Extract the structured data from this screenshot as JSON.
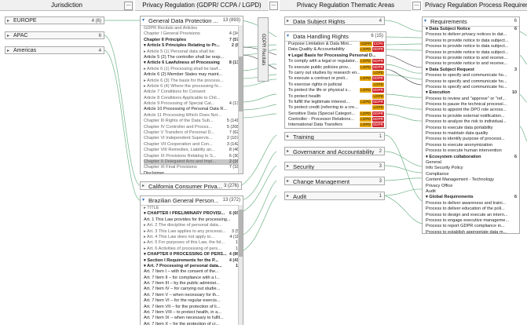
{
  "headers": {
    "jurisdiction": "Jurisdiction",
    "privacy_regulation": "Privacy Regulation (GDPR/ CCPA / LGPD)",
    "thematic_areas": "Privacy Regulation Thematic Areas",
    "requirements": "Privacy Regulation Process Requirements"
  },
  "vertical_label": "GDPR Recitals",
  "jurisdictions": [
    {
      "label": "EUROPE",
      "count": "4 (6)"
    },
    {
      "label": "APAC",
      "count": "6"
    },
    {
      "label": "Americas",
      "count": "4"
    }
  ],
  "gdpr": {
    "title": "General Data Protection ...",
    "count": "13 (893)",
    "rows": [
      {
        "t": "GDPR Recitals and Articles",
        "c": "",
        "cls": "g"
      },
      {
        "t": "Chapter I General Provisions",
        "c": "4 (34)",
        "cls": "g"
      },
      {
        "t": "Chapter II Principles",
        "c": "7 (57)",
        "cls": "b"
      },
      {
        "t": "▾ Article 5 Principles Relating to Pr...",
        "c": "2 (8)",
        "cls": "b"
      },
      {
        "t": "   ▸ Article 5 (1) Personal data shall be:",
        "c": "6",
        "cls": "g"
      },
      {
        "t": "   Article 5 (2) The controller shall be resp...",
        "c": "",
        "cls": ""
      },
      {
        "t": "▾ Article 6 Lawfulness of Processing",
        "c": "8 (13)",
        "cls": "b"
      },
      {
        "t": "   ▸ Article 6 (1) Processing shall be lawf...",
        "c": "6",
        "cls": "g"
      },
      {
        "t": "   Article 6 (2) Member States may maint...",
        "c": "",
        "cls": ""
      },
      {
        "t": "   ▸ Article 6 (3) The basis for the process...",
        "c": "2",
        "cls": "g"
      },
      {
        "t": "   ▸ Article 6 (4) Where the processing fo...",
        "c": "5",
        "cls": "g"
      },
      {
        "t": "   Article 7 Conditions for Consent",
        "c": "4",
        "cls": "g"
      },
      {
        "t": "   Article 8 Conditions Applicable to Chil...",
        "c": "3",
        "cls": "g"
      },
      {
        "t": "   Article 9 Processing of Special Cat...",
        "c": "4 (13)",
        "cls": "g"
      },
      {
        "t": "Article 10 Processing of Personal Data R...",
        "c": "",
        "cls": ""
      },
      {
        "t": "Article 11 Processing Which Does Not...",
        "c": "2",
        "cls": "g"
      },
      {
        "t": "Chapter III Rights of the Data Sub...",
        "c": "5 (141)",
        "cls": "g"
      },
      {
        "t": "Chapter IV Controller and Proces...",
        "c": "5 (208)",
        "cls": "g"
      },
      {
        "t": "Chapter V Transfers of Personal D...",
        "c": "7 (62)",
        "cls": "g"
      },
      {
        "t": "Chapter VI Independent Supervis...",
        "c": "2 (107)",
        "cls": "g"
      },
      {
        "t": "Chapter VII Cooperation and Con...",
        "c": "3 (142)",
        "cls": "g"
      },
      {
        "t": "Chapter VIII Remedies, Liability an...",
        "c": "8 (46)",
        "cls": "g"
      },
      {
        "t": "Chapter IX Provisions Relating to S...",
        "c": "6 (30)",
        "cls": "g"
      },
      {
        "t": "Chapter X Delegated Acts and Impl...",
        "c": "2 (16)",
        "cls": "g sel"
      },
      {
        "t": "Chapter XI Final Provisions",
        "c": "7 (18)",
        "cls": "g"
      },
      {
        "t": "Disclaimer",
        "c": "",
        "cls": ""
      }
    ]
  },
  "ccpa": {
    "title": "California Consumer Priva...",
    "count": "3 (276)"
  },
  "lgpd": {
    "title": "Brazilian General Person...",
    "count": "13 (372)",
    "rows": [
      {
        "t": "▸ TITLE",
        "c": "2",
        "cls": "g"
      },
      {
        "t": "▾ CHAPTER I PRELIMINARY PROVISI...",
        "c": "6 (65)",
        "cls": "b"
      },
      {
        "t": "Art. 1 This Law provides for the processing...",
        "c": "",
        "cls": ""
      },
      {
        "t": "▸ Art. 2 The discipline of personal data...",
        "c": "7",
        "cls": "g"
      },
      {
        "t": "▸ Art. 3 This Law applies to any processi...",
        "c": "3 (5)",
        "cls": "g"
      },
      {
        "t": "▸ Art. 4 This Law does not apply to...",
        "c": "4 (11)",
        "cls": "g"
      },
      {
        "t": "▸ Art. 5 For purposes of this Law, the fol...",
        "c": "19",
        "cls": "g"
      },
      {
        "t": "▸ Art. 6 Activities of processing of pers...",
        "c": "10",
        "cls": "g"
      },
      {
        "t": "▾ CHAPTER II PROCESSING OF PERS...",
        "c": "4 (86)",
        "cls": "b"
      },
      {
        "t": "▾ Section I Requirements for the P...",
        "c": "4 (41)",
        "cls": "b"
      },
      {
        "t": "▾ Art. 7 Processing of personal data...",
        "c": "16",
        "cls": "b"
      },
      {
        "t": "   Art. 7 Item I – with the consent of the...",
        "c": "",
        "cls": ""
      },
      {
        "t": "   Art. 7 Item II – for compliance with a l...",
        "c": "",
        "cls": ""
      },
      {
        "t": "   Art. 7 Item III – by the public administ...",
        "c": "",
        "cls": ""
      },
      {
        "t": "   Art. 7 Item IV – for carrying out studie...",
        "c": "",
        "cls": ""
      },
      {
        "t": "   Art. 7 Item V – when necessary for th...",
        "c": "",
        "cls": ""
      },
      {
        "t": "   Art. 7 Item VI – for the regular exercis...",
        "c": "",
        "cls": ""
      },
      {
        "t": "   Art. 7 Item VII – for the protection of li...",
        "c": "",
        "cls": ""
      },
      {
        "t": "   Art. 7 Item VIII – to protect health, in a...",
        "c": "",
        "cls": ""
      },
      {
        "t": "   Art. 7 Item IX – when necessary to fulfil...",
        "c": "",
        "cls": ""
      },
      {
        "t": "   Art. 7 Item X – for the protection of cr...",
        "c": "",
        "cls": ""
      }
    ]
  },
  "subject_rights": {
    "title": "Data Subject Rights",
    "count": "4"
  },
  "handling": {
    "title": "Data Handling Rights",
    "count": "6 (15)",
    "rows": [
      {
        "t": "Purpose Limitation & Data Mini...",
        "tags": [
          [
            "GDPR",
            "y"
          ],
          [
            "CCPA",
            "r"
          ]
        ],
        "bold": false
      },
      {
        "t": "Data Quality & Accountability",
        "tags": [
          [
            "LGPD",
            "y"
          ],
          [
            "GDPR",
            "r"
          ]
        ],
        "bold": false
      },
      {
        "t": "▾ Legal Basis for Processing Personal D...",
        "tags": [],
        "bold": true
      },
      {
        "t": "To comply with a legal or regulator...",
        "tags": [
          [
            "LGPD",
            "y"
          ],
          [
            "GDPR",
            "r"
          ]
        ],
        "bold": false
      },
      {
        "t": "To execute public policies prov...",
        "tags": [
          [
            "LGPD",
            "y"
          ],
          [
            "GDPR",
            "r"
          ]
        ],
        "bold": false
      },
      {
        "t": "To carry out studies by research en...",
        "tags": [
          [
            "LGPD",
            "y"
          ]
        ],
        "bold": false
      },
      {
        "t": "To execute a contract or preli...",
        "tags": [
          [
            "LGPD",
            "y"
          ],
          [
            "GDPR",
            "r"
          ]
        ],
        "bold": false
      },
      {
        "t": "To exercise rights in judicial",
        "tags": [
          [
            "LGPD",
            "y"
          ]
        ],
        "bold": false
      },
      {
        "t": "To protect the life or physical s...",
        "tags": [
          [
            "LGPD",
            "y"
          ],
          [
            "GDPR",
            "r"
          ]
        ],
        "bold": false
      },
      {
        "t": "To protect health",
        "tags": [
          [
            "LGPD",
            "y"
          ]
        ],
        "bold": false
      },
      {
        "t": "To fulfill the legitimate interest...",
        "tags": [
          [
            "LGPD",
            "y"
          ],
          [
            "GDPR",
            "r"
          ]
        ],
        "bold": false
      },
      {
        "t": "To protect credit (referring to a cre...",
        "tags": [
          [
            "LGPD",
            "y"
          ]
        ],
        "bold": false
      },
      {
        "t": "Sensitive Data (Special Categori...",
        "tags": [
          [
            "LGPD",
            "y"
          ],
          [
            "GDPR",
            "r"
          ]
        ],
        "bold": false
      },
      {
        "t": "Controller - Processor Relations...",
        "tags": [
          [
            "LGPD",
            "y"
          ],
          [
            "GDPR",
            "r"
          ]
        ],
        "bold": false
      },
      {
        "t": "International Data Transfers",
        "tags": [
          [
            "LGPD",
            "y"
          ],
          [
            "GDPR",
            "r"
          ]
        ],
        "bold": false
      }
    ]
  },
  "themes": [
    {
      "label": "Training",
      "count": "1"
    },
    {
      "label": "Governance and Accountability",
      "count": "2"
    },
    {
      "label": "Security",
      "count": "3"
    },
    {
      "label": "Change Management",
      "count": "3"
    },
    {
      "label": "Audit",
      "count": "1"
    }
  ],
  "requirements": {
    "title": "Requirements",
    "count": "6",
    "rows": [
      {
        "t": "▾ Data Subject Notice",
        "c": "6",
        "b": true
      },
      {
        "t": "Process to deliver privacy notices to dat...",
        "c": "",
        "b": false
      },
      {
        "t": "Process to provide notice to data subject...",
        "c": "",
        "b": false
      },
      {
        "t": "Process to provide notice to data subject...",
        "c": "",
        "b": false
      },
      {
        "t": "Process to provide notice to data subject...",
        "c": "",
        "b": false
      },
      {
        "t": "Process to provide notice to and receive...",
        "c": "",
        "b": false
      },
      {
        "t": "Process to provide notice to and receive...",
        "c": "",
        "b": false
      },
      {
        "t": "▾ Data Subject Request",
        "c": "3",
        "b": true
      },
      {
        "t": "Process to specify and communicate ho...",
        "c": "",
        "b": false
      },
      {
        "t": "Process to specify and communicate ho...",
        "c": "",
        "b": false
      },
      {
        "t": "Process to specify and communicate ho...",
        "c": "",
        "b": false
      },
      {
        "t": "▾ Execution",
        "c": "10",
        "b": true
      },
      {
        "t": "Process to review and \"approve\" or \"ref...",
        "c": "",
        "b": false
      },
      {
        "t": "Process to pause the technical processi...",
        "c": "",
        "b": false
      },
      {
        "t": "Process to appoint the DPO role across...",
        "c": "",
        "b": false
      },
      {
        "t": "Process to provide external notification...",
        "c": "",
        "b": false
      },
      {
        "t": "Process to analyze the risk to individual...",
        "c": "",
        "b": false
      },
      {
        "t": "Process to execute data portability",
        "c": "",
        "b": false
      },
      {
        "t": "Process to maintain data quality",
        "c": "",
        "b": false
      },
      {
        "t": "Process to identify purpose of processi...",
        "c": "",
        "b": false
      },
      {
        "t": "Process to execute anonymization",
        "c": "",
        "b": false
      },
      {
        "t": "Process to execute human intervention",
        "c": "",
        "b": false
      },
      {
        "t": "▾ Ecosystem collaboration",
        "c": "6",
        "b": true
      },
      {
        "t": "General",
        "c": "",
        "b": false
      },
      {
        "t": "Info Security Policy",
        "c": "",
        "b": false
      },
      {
        "t": "Compliance",
        "c": "",
        "b": false
      },
      {
        "t": "Content Management - Technology",
        "c": "",
        "b": false
      },
      {
        "t": "Privacy Office",
        "c": "",
        "b": false
      },
      {
        "t": "Audit",
        "c": "",
        "b": false
      },
      {
        "t": "▾ Global Requirements",
        "c": "6",
        "b": true
      },
      {
        "t": "Process to deliver awareness and traini...",
        "c": "",
        "b": false
      },
      {
        "t": "Process to deliver education of the poli...",
        "c": "",
        "b": false
      },
      {
        "t": "Process to design and execute an intern...",
        "c": "",
        "b": false
      },
      {
        "t": "Process to engage executive manageme...",
        "c": "",
        "b": false
      },
      {
        "t": "Process to report GDPR compliance in...",
        "c": "",
        "b": false
      },
      {
        "t": "Process to establish appropriate data m...",
        "c": "",
        "b": false
      }
    ]
  },
  "colors": {
    "link": "#5aa874",
    "accent": "#2a6ebb",
    "dark_link": "#222222"
  }
}
